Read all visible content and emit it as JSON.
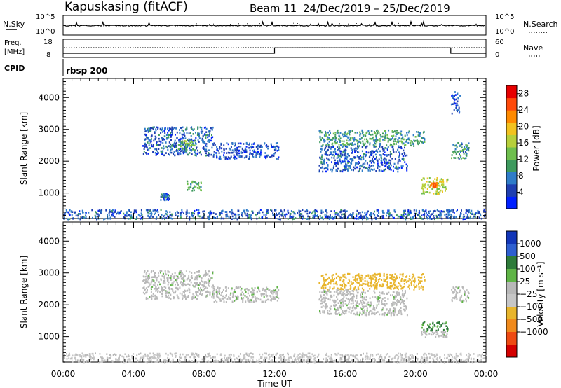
{
  "header": {
    "station": "Kapuskasing (fitACF)",
    "beam": "Beam 11",
    "date_range": "24/Dec/2019 – 25/Dec/2019"
  },
  "nsky_panel": {
    "left_label": "N.Sky",
    "right_label": "N.Search",
    "left_ticks": [
      "10^5",
      "10^0"
    ],
    "right_ticks": [
      "10^5",
      "10^0"
    ]
  },
  "freq_panel": {
    "left_label_1": "Freq.",
    "left_label_2": "[MHz]",
    "right_label": "Nave",
    "left_ticks": [
      "18",
      "8"
    ],
    "right_ticks": [
      "60",
      "0"
    ],
    "frequency_steps_utc_hours": [
      0,
      12,
      22
    ],
    "frequency_levels_mhz": [
      10.3,
      13.3,
      10.3
    ]
  },
  "cpid_panel": {
    "label": "CPID",
    "program": "rbsp 200"
  },
  "x_axis": {
    "label": "Time UT",
    "ticks": [
      "00:00",
      "04:00",
      "08:00",
      "12:00",
      "16:00",
      "20:00",
      "00:00"
    ]
  },
  "colors": {
    "power": [
      "#0020ff",
      "#1f3fb0",
      "#2f7cc8",
      "#3e9a5e",
      "#6fbf4e",
      "#b7cf3b",
      "#f2c21f",
      "#ff8a00",
      "#ff4a0a",
      "#e60000"
    ],
    "velocity": [
      "#1236b8",
      "#2e5fd0",
      "#2e7b3a",
      "#5fb446",
      "#b8b8b8",
      "#c6c6c6",
      "#e8b52c",
      "#f08a1c",
      "#ee4a12",
      "#d40000"
    ]
  },
  "chart_data": [
    {
      "type": "heatmap",
      "name": "Power",
      "ylabel": "Slant Range [km]",
      "yticks": [
        "1000",
        "2000",
        "3000",
        "4000"
      ],
      "ylim": [
        200,
        4600
      ],
      "xlim_hours": [
        0,
        24
      ],
      "colorbar": {
        "label": "Power [dB]",
        "ticks": [
          "4",
          "8",
          "12",
          "16",
          "20",
          "24",
          "28"
        ],
        "range": [
          0,
          30
        ]
      },
      "echo_regions": [
        {
          "t": [
            0,
            24
          ],
          "r": [
            200,
            500
          ],
          "value": 6
        },
        {
          "t": [
            4.5,
            8.5
          ],
          "r": [
            2200,
            3100
          ],
          "value": 6
        },
        {
          "t": [
            6.5,
            7.5
          ],
          "r": [
            2400,
            2700
          ],
          "value": 13
        },
        {
          "t": [
            8.5,
            12.2
          ],
          "r": [
            2100,
            2600
          ],
          "value": 5
        },
        {
          "t": [
            7,
            7.8
          ],
          "r": [
            1100,
            1400
          ],
          "value": 11
        },
        {
          "t": [
            5.5,
            6
          ],
          "r": [
            800,
            1000
          ],
          "value": 6
        },
        {
          "t": [
            14.5,
            20.5
          ],
          "r": [
            2500,
            3000
          ],
          "value": 10
        },
        {
          "t": [
            14.5,
            19.5
          ],
          "r": [
            1700,
            2500
          ],
          "value": 6
        },
        {
          "t": [
            20.3,
            21.8
          ],
          "r": [
            1000,
            1500
          ],
          "value": 16
        },
        {
          "t": [
            20.8,
            21.2
          ],
          "r": [
            1200,
            1350
          ],
          "value": 24
        },
        {
          "t": [
            22,
            23
          ],
          "r": [
            2100,
            2600
          ],
          "value": 9
        },
        {
          "t": [
            22,
            22.5
          ],
          "r": [
            3500,
            4200
          ],
          "value": 5
        }
      ]
    },
    {
      "type": "heatmap",
      "name": "Velocity",
      "ylabel": "Slant Range [km]",
      "yticks": [
        "1000",
        "2000",
        "3000",
        "4000"
      ],
      "ylim": [
        200,
        4600
      ],
      "xlim_hours": [
        0,
        24
      ],
      "colorbar": {
        "label": "Velocity [m s⁻¹]",
        "ticks": [
          "1000",
          "500",
          "100",
          "25",
          "−25",
          "−100",
          "−500",
          "−1000"
        ]
      },
      "echo_regions": [
        {
          "t": [
            0,
            24
          ],
          "r": [
            200,
            500
          ],
          "value": -40
        },
        {
          "t": [
            4.5,
            8.5
          ],
          "r": [
            2200,
            3100
          ],
          "value": 0
        },
        {
          "t": [
            8.5,
            12.2
          ],
          "r": [
            2100,
            2600
          ],
          "value": 0
        },
        {
          "t": [
            14.5,
            20.5
          ],
          "r": [
            2500,
            3000
          ],
          "value": -150
        },
        {
          "t": [
            14.5,
            19.5
          ],
          "r": [
            1700,
            2500
          ],
          "value": 0
        },
        {
          "t": [
            20.3,
            21.8
          ],
          "r": [
            1200,
            1500
          ],
          "value": 110
        },
        {
          "t": [
            20.3,
            21.8
          ],
          "r": [
            1000,
            1200
          ],
          "value": 0
        },
        {
          "t": [
            22,
            23
          ],
          "r": [
            2100,
            2600
          ],
          "value": 0
        }
      ]
    }
  ]
}
